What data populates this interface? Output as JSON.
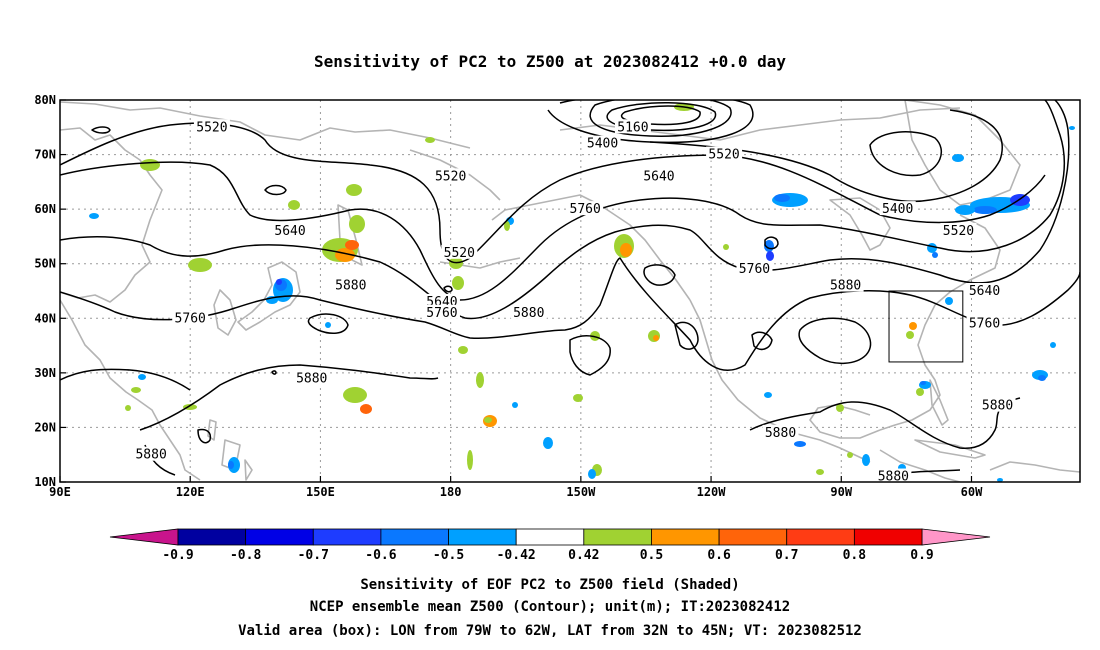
{
  "title": "Sensitivity of PC2 to Z500 at 2023082412 +0.0 day",
  "axes": {
    "lon_labels": [
      "90E",
      "120E",
      "150E",
      "180",
      "150W",
      "120W",
      "90W",
      "60W"
    ],
    "lat_labels": [
      "80N",
      "70N",
      "60N",
      "50N",
      "40N",
      "30N",
      "20N",
      "10N"
    ]
  },
  "colors": {
    "contour": "#000000",
    "coast": "#b4b4b4",
    "grid": "#9a9a9a",
    "frame": "#000000"
  },
  "colorbar": {
    "labels": [
      "-0.9",
      "-0.8",
      "-0.7",
      "-0.6",
      "-0.5",
      "-0.42",
      "0.42",
      "0.5",
      "0.6",
      "0.7",
      "0.8",
      "0.9"
    ],
    "colors": [
      "#0000a0",
      "#0000e6",
      "#1e3cff",
      "#0a78ff",
      "#00a0ff",
      "#ffffff",
      "#a0d232",
      "#ff9600",
      "#ff640a",
      "#ff3c14",
      "#f00000"
    ],
    "low_extend_color": "#c8148c",
    "high_extend_color": "#ff96c8"
  },
  "contour_labels": [
    {
      "text": "5520",
      "lon": 125,
      "lat": 75
    },
    {
      "text": "5160",
      "lon": 222,
      "lat": 75
    },
    {
      "text": "5400",
      "lon": 215,
      "lat": 72
    },
    {
      "text": "5520",
      "lon": 243,
      "lat": 70
    },
    {
      "text": "5520",
      "lon": 180,
      "lat": 66
    },
    {
      "text": "5640",
      "lon": 228,
      "lat": 66
    },
    {
      "text": "5760",
      "lon": 211,
      "lat": 60
    },
    {
      "text": "5400",
      "lon": 283,
      "lat": 60
    },
    {
      "text": "5520",
      "lon": 297,
      "lat": 56
    },
    {
      "text": "5640",
      "lon": 143,
      "lat": 56
    },
    {
      "text": "5520",
      "lon": 182,
      "lat": 52
    },
    {
      "text": "5760",
      "lon": 250,
      "lat": 49
    },
    {
      "text": "5880",
      "lon": 271,
      "lat": 46
    },
    {
      "text": "5640",
      "lon": 303,
      "lat": 45
    },
    {
      "text": "5880",
      "lon": 157,
      "lat": 46
    },
    {
      "text": "5640",
      "lon": 178,
      "lat": 43
    },
    {
      "text": "5760",
      "lon": 178,
      "lat": 41
    },
    {
      "text": "5880",
      "lon": 198,
      "lat": 41
    },
    {
      "text": "5760",
      "lon": 120,
      "lat": 40
    },
    {
      "text": "5760",
      "lon": 303,
      "lat": 39
    },
    {
      "text": "5880",
      "lon": 148,
      "lat": 29
    },
    {
      "text": "5880",
      "lon": 306,
      "lat": 24
    },
    {
      "text": "5880",
      "lon": 256,
      "lat": 19
    },
    {
      "text": "5880",
      "lon": 111,
      "lat": 15
    },
    {
      "text": "5880",
      "lon": 282,
      "lat": 11
    }
  ],
  "valid_box": {
    "lon_min": 281,
    "lon_max": 298,
    "lat_min": 32,
    "lat_max": 45
  },
  "footer": {
    "line1": "Sensitivity of EOF PC2 to Z500 field (Shaded)",
    "line2": "NCEP ensemble mean Z500 (Contour); unit(m); IT:2023082412",
    "line3": "Valid area (box): LON from 79W to 62W, LAT from 32N to 45N; VT: 2023082512"
  }
}
